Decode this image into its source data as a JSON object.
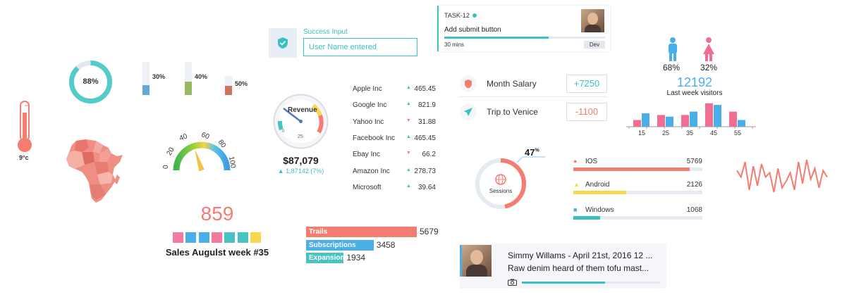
{
  "donut": {
    "value": "88%",
    "percent": 88,
    "color": "#52cbc9"
  },
  "mini_bars": [
    {
      "label": "30%",
      "percent": 30,
      "color": "#64a8d6"
    },
    {
      "label": "40%",
      "percent": 40,
      "color": "#9ab864"
    },
    {
      "label": "50%",
      "percent": 50,
      "color": "#c97560"
    }
  ],
  "thermometer": {
    "label": "9°c",
    "color": "#f47c71"
  },
  "speedometer": {
    "ticks": [
      "0",
      "20",
      "40",
      "60",
      "80",
      "100"
    ],
    "needle_value": 40
  },
  "revenue_gauge": {
    "title": "Revenue",
    "low_label": "0",
    "mid_label": "25",
    "amount": "$87,079",
    "change": "▲ 1,87142 (7%)"
  },
  "success_input": {
    "label": "Success Input",
    "value": "User Name entered"
  },
  "stocks": [
    {
      "name": "Apple Inc",
      "trend": "up",
      "value": "465.45"
    },
    {
      "name": "Google Inc",
      "trend": "up",
      "value": "821.9"
    },
    {
      "name": "Yahoo Inc",
      "trend": "down",
      "value": "31.88"
    },
    {
      "name": "Facebook Inc",
      "trend": "up",
      "value": "465.45"
    },
    {
      "name": "Ebay Inc",
      "trend": "down",
      "value": "66.2"
    },
    {
      "name": "Amazon Inc",
      "trend": "up",
      "value": "278.73"
    },
    {
      "name": "Microsoft",
      "trend": "up",
      "value": "39.64"
    }
  ],
  "task": {
    "id": "TASK-12",
    "title": "Add submit button",
    "duration": "30 mins",
    "tag": "Dev",
    "progress": 0.65
  },
  "finance": [
    {
      "label": "Month Salary",
      "value": "+7250",
      "icon": "shield-icon",
      "color": "#3bbfc0"
    },
    {
      "label": "Trip to Venice",
      "value": "-1100",
      "icon": "plane-icon",
      "color": "#f47c71"
    }
  ],
  "visitors": {
    "male_pct": "68%",
    "female_pct": "32%",
    "count": "12192",
    "caption": "Last week visitors"
  },
  "chart_data": {
    "type": "bar",
    "categories": [
      "15",
      "25",
      "35",
      "45",
      "55"
    ],
    "series": [
      {
        "values": [
          4,
          7,
          7,
          14,
          9
        ],
        "color": "#f06d93"
      },
      {
        "values": [
          8,
          6,
          9,
          13,
          4
        ],
        "color": "#4aaee8"
      }
    ],
    "xlabel": "",
    "ylabel": "",
    "ylim": [
      0,
      16
    ]
  },
  "sessions": {
    "label": "Sessions",
    "percent_value": "47",
    "percent_suffix": "%",
    "percent": 47
  },
  "os": [
    {
      "label": "IOS",
      "count": "5769",
      "fraction": 0.9,
      "color": "#f47c71",
      "icon": "apple-icon"
    },
    {
      "label": "Android",
      "count": "2126",
      "fraction": 0.41,
      "color": "#f6d84f",
      "icon": "android-icon"
    },
    {
      "label": "Windows",
      "count": "1068",
      "fraction": 0.21,
      "color": "#3bbfc0",
      "icon": "windows-icon"
    }
  ],
  "sparkline": [
    12,
    9,
    16,
    3,
    14,
    5,
    15,
    9,
    11,
    2,
    13,
    4,
    7,
    11,
    3,
    16,
    6,
    17,
    8,
    13,
    4,
    12,
    9
  ],
  "sales": {
    "value": "859",
    "caption": "Sales Augulst week #35",
    "squares": [
      "#f27aa3",
      "#4aaee8",
      "#4aaee8",
      "#f27aa3",
      "#48c2c2",
      "#48c2c2",
      "#f6d84f"
    ]
  },
  "trails": [
    {
      "label": "Trails",
      "value": "5679",
      "fraction": 1.0,
      "color": "#f47c71"
    },
    {
      "label": "Subscriptions",
      "value": "3458",
      "fraction": 0.61,
      "color": "#4aaee8"
    },
    {
      "label": "Expansions",
      "value": "1934",
      "fraction": 0.34,
      "color": "#48c2c2"
    }
  ],
  "message": {
    "title": "Simmy Willams - April 21st, 2016 12 ...",
    "body": "Raw denim heard of them tofu mast...",
    "progress": 0.6
  }
}
